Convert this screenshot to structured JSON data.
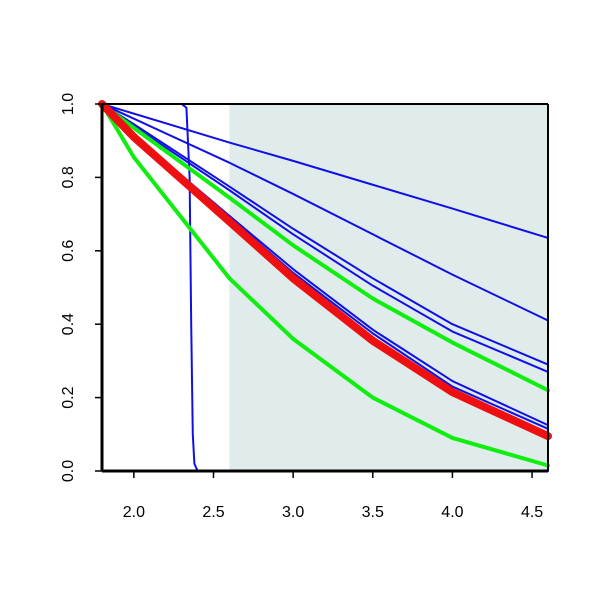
{
  "chart_data": {
    "type": "line",
    "title": "",
    "xlabel": "",
    "ylabel": "",
    "xlim": [
      1.8,
      4.6
    ],
    "ylim": [
      0,
      1.0
    ],
    "x_ticks": [
      "2.0",
      "2.5",
      "3.0",
      "3.5",
      "4.0",
      "4.5"
    ],
    "y_ticks": [
      "0.0",
      "0.2",
      "0.4",
      "0.6",
      "0.8",
      "1.0"
    ],
    "grid": false,
    "legend": "none",
    "shaded_region": {
      "x_start": 2.6,
      "x_end": 4.6,
      "color": "#e0ecec"
    },
    "colors": {
      "blue": "#1010e6",
      "green": "#10ee10",
      "red": "#ee1010",
      "axis": "#000000"
    },
    "series": [
      {
        "color": "blue",
        "width": 2,
        "points": [
          [
            1.8,
            1.0
          ],
          [
            2.3,
            1.0
          ],
          [
            2.33,
            0.99
          ],
          [
            2.35,
            0.8
          ],
          [
            2.36,
            0.4
          ],
          [
            2.37,
            0.1
          ],
          [
            2.38,
            0.02
          ],
          [
            2.4,
            0.0
          ],
          [
            4.6,
            0.0
          ]
        ]
      },
      {
        "color": "blue",
        "width": 2,
        "points": [
          [
            1.8,
            1.0
          ],
          [
            2.6,
            0.895
          ],
          [
            3.0,
            0.845
          ],
          [
            3.5,
            0.78
          ],
          [
            4.0,
            0.715
          ],
          [
            4.6,
            0.635
          ]
        ]
      },
      {
        "color": "blue",
        "width": 2,
        "points": [
          [
            1.8,
            1.0
          ],
          [
            2.6,
            0.84
          ],
          [
            3.0,
            0.755
          ],
          [
            3.5,
            0.645
          ],
          [
            4.0,
            0.535
          ],
          [
            4.6,
            0.41
          ]
        ]
      },
      {
        "color": "blue",
        "width": 2,
        "points": [
          [
            1.8,
            1.0
          ],
          [
            2.0,
            0.945
          ],
          [
            2.6,
            0.775
          ],
          [
            3.0,
            0.66
          ],
          [
            3.5,
            0.525
          ],
          [
            4.0,
            0.4
          ],
          [
            4.6,
            0.29
          ]
        ]
      },
      {
        "color": "blue",
        "width": 2,
        "points": [
          [
            1.8,
            1.0
          ],
          [
            2.0,
            0.94
          ],
          [
            2.6,
            0.765
          ],
          [
            3.0,
            0.645
          ],
          [
            3.5,
            0.505
          ],
          [
            4.0,
            0.38
          ],
          [
            4.6,
            0.27
          ]
        ]
      },
      {
        "color": "blue",
        "width": 2,
        "points": [
          [
            1.8,
            1.0
          ],
          [
            2.0,
            0.915
          ],
          [
            2.6,
            0.695
          ],
          [
            3.0,
            0.55
          ],
          [
            3.5,
            0.385
          ],
          [
            4.0,
            0.245
          ],
          [
            4.6,
            0.125
          ]
        ]
      },
      {
        "color": "blue",
        "width": 2,
        "points": [
          [
            1.8,
            1.0
          ],
          [
            2.0,
            0.915
          ],
          [
            2.6,
            0.69
          ],
          [
            3.0,
            0.54
          ],
          [
            3.5,
            0.375
          ],
          [
            4.0,
            0.23
          ],
          [
            4.6,
            0.115
          ]
        ]
      },
      {
        "color": "green",
        "width": 4,
        "points": [
          [
            1.8,
            1.0
          ],
          [
            2.0,
            0.935
          ],
          [
            2.6,
            0.745
          ],
          [
            3.0,
            0.615
          ],
          [
            3.5,
            0.47
          ],
          [
            4.0,
            0.35
          ],
          [
            4.6,
            0.22
          ]
        ]
      },
      {
        "color": "green",
        "width": 4,
        "points": [
          [
            1.8,
            1.0
          ],
          [
            2.0,
            0.855
          ],
          [
            2.4,
            0.635
          ],
          [
            2.6,
            0.525
          ],
          [
            3.0,
            0.36
          ],
          [
            3.5,
            0.2
          ],
          [
            4.0,
            0.09
          ],
          [
            4.6,
            0.015
          ]
        ]
      },
      {
        "color": "red",
        "width": 8,
        "points": [
          [
            1.8,
            1.0
          ],
          [
            2.0,
            0.91
          ],
          [
            2.6,
            0.68
          ],
          [
            3.0,
            0.525
          ],
          [
            3.5,
            0.355
          ],
          [
            4.0,
            0.215
          ],
          [
            4.6,
            0.095
          ]
        ]
      }
    ]
  }
}
